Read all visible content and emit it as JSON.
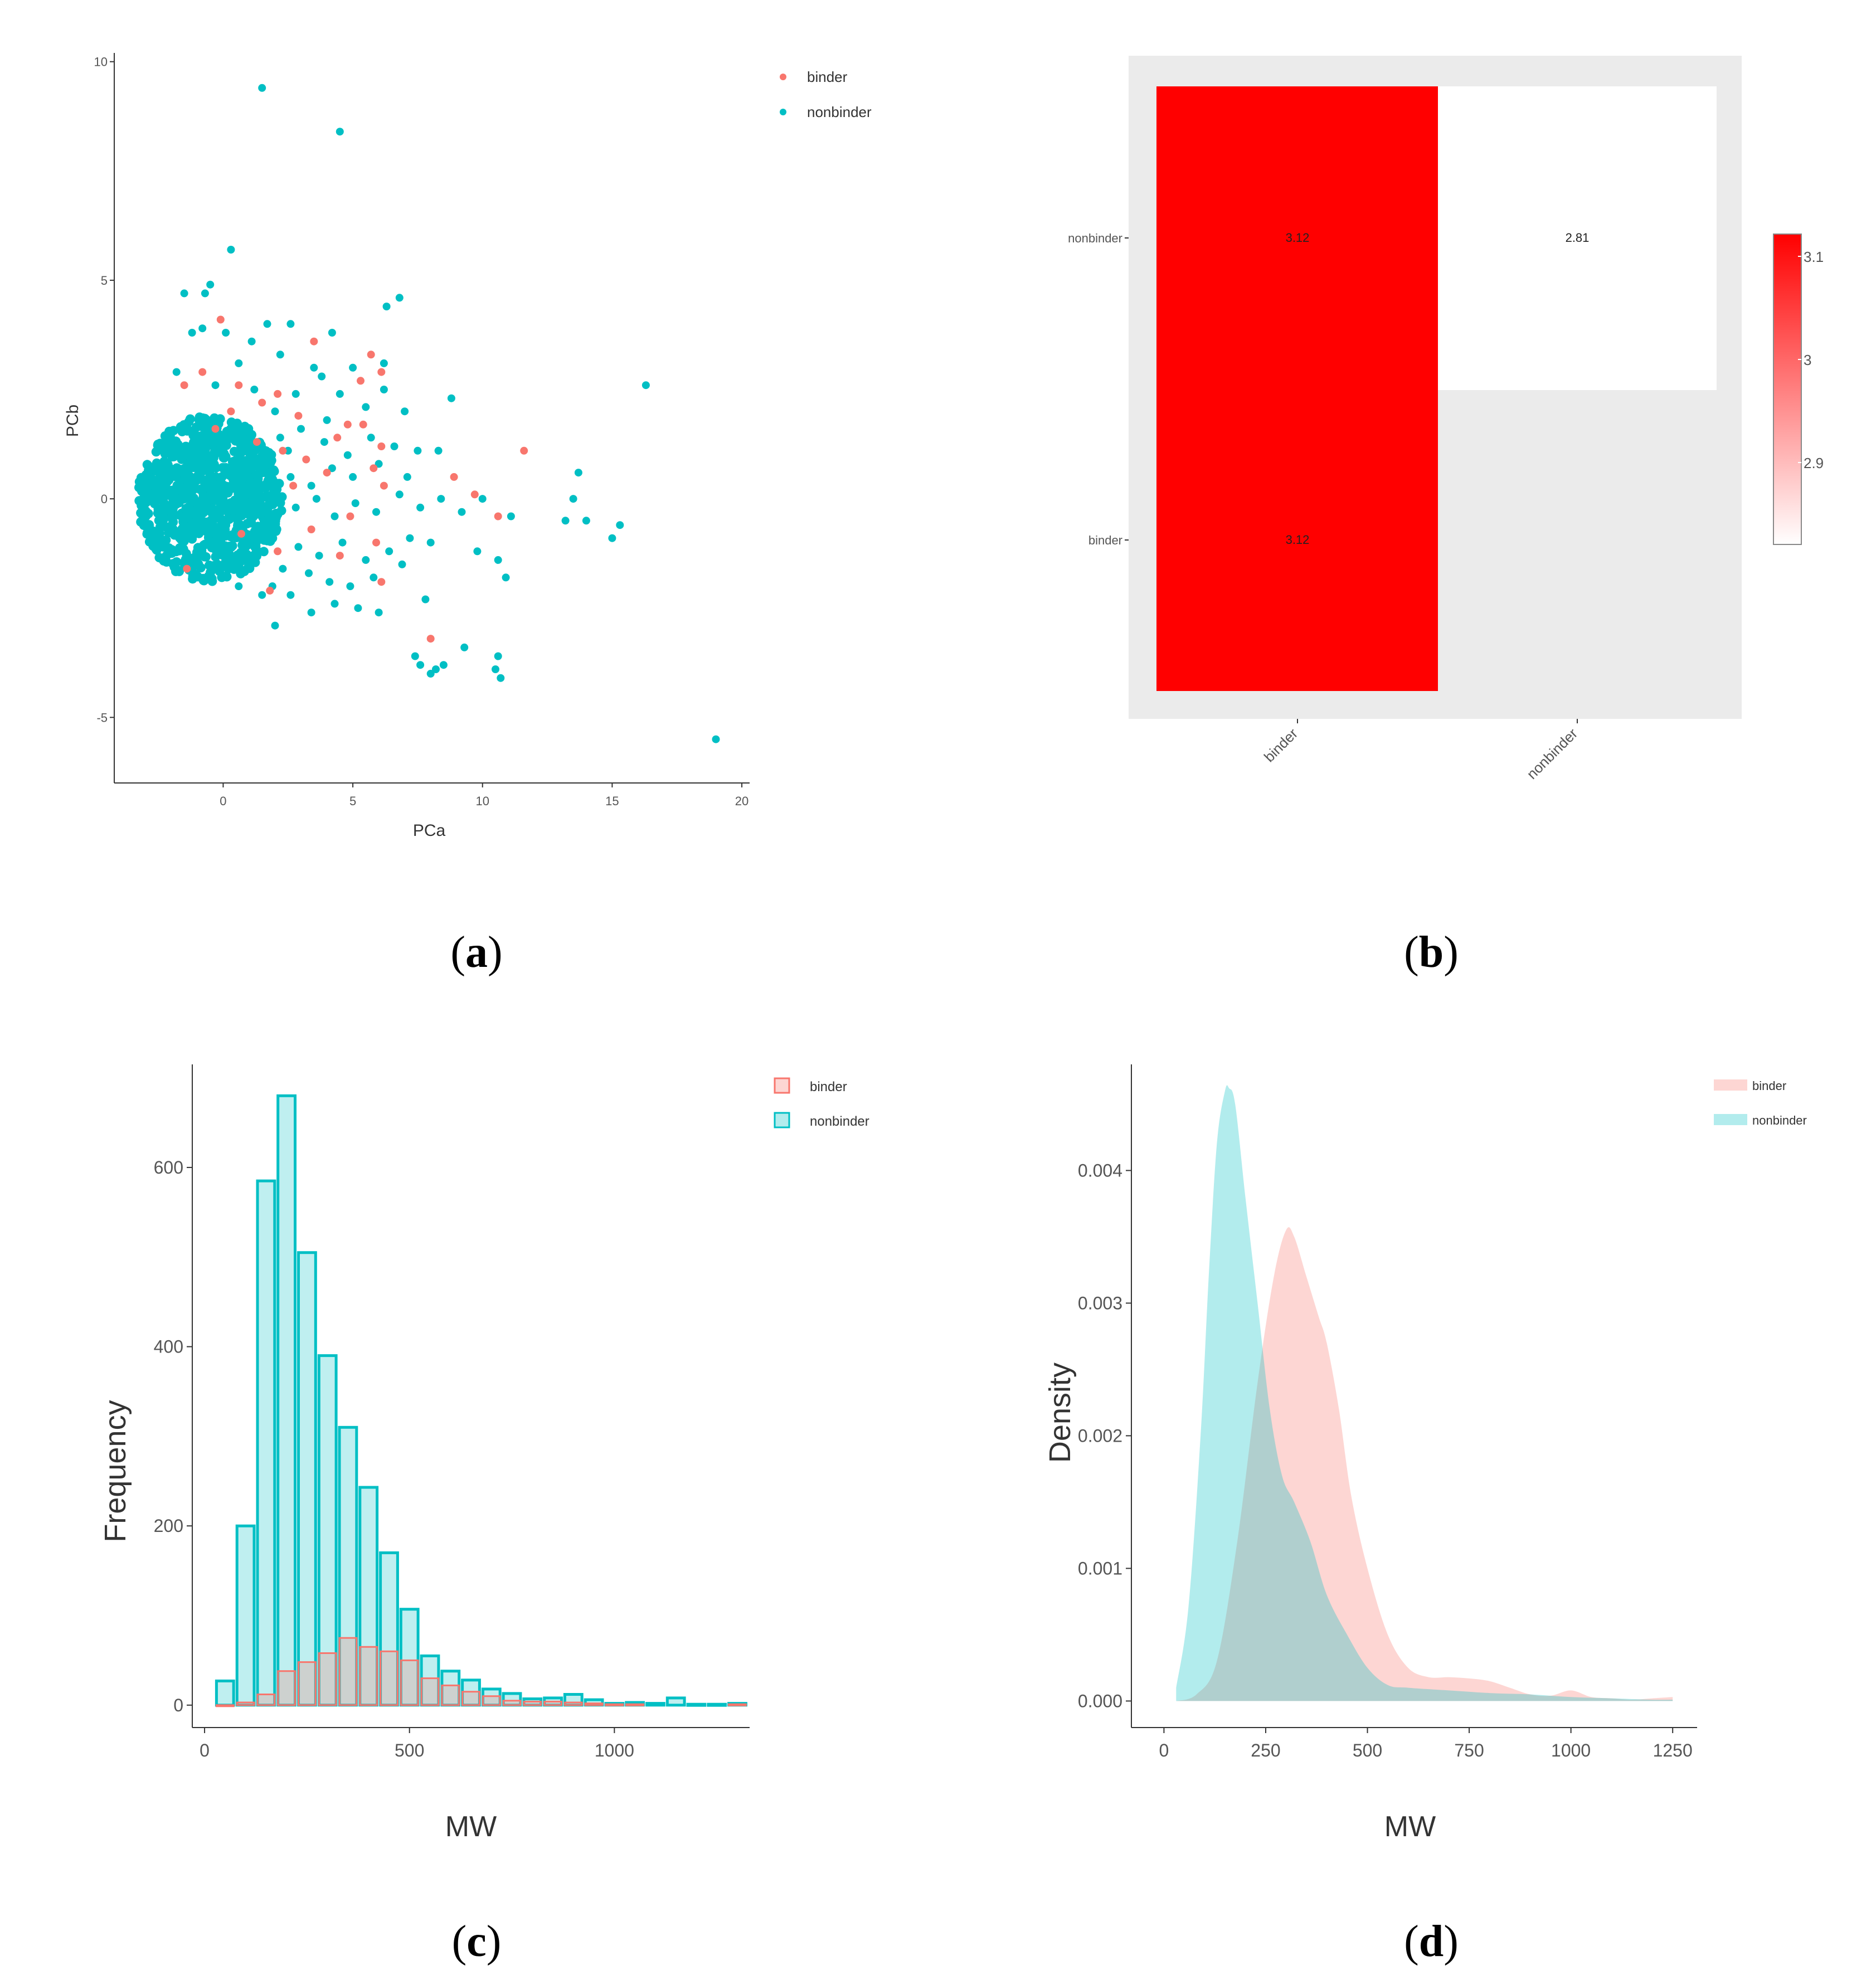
{
  "colors": {
    "binder": "#F8766D",
    "nonbinder": "#00BFC4",
    "heat_high": "#FF0000",
    "heat_low": "#FFFFFF",
    "panel_bg": "#EBEBEB"
  },
  "panel_labels": {
    "a": {
      "open": "(",
      "letter": "a",
      "close": ")"
    },
    "b": {
      "open": "(",
      "letter": "b",
      "close": ")"
    },
    "c": {
      "open": "(",
      "letter": "c",
      "close": ")"
    },
    "d": {
      "open": "(",
      "letter": "d",
      "close": ")"
    }
  },
  "chart_data": [
    {
      "id": "a",
      "type": "scatter",
      "title": "",
      "xlabel": "PCa",
      "ylabel": "PCb",
      "xlim": [
        -4.2,
        20.3
      ],
      "ylim": [
        -6.5,
        10.2
      ],
      "xticks": [
        0,
        5,
        10,
        15,
        20
      ],
      "yticks": [
        -5,
        0,
        5,
        10
      ],
      "grid": false,
      "legend": {
        "placement": "top-right",
        "entries": [
          "binder",
          "nonbinder"
        ]
      },
      "dense_cluster": {
        "center": [
          -0.5,
          0
        ],
        "rx": 2.8,
        "ry": 1.9,
        "series": "nonbinder"
      },
      "series": [
        {
          "name": "nonbinder",
          "points": [
            [
              1.5,
              9.4
            ],
            [
              4.5,
              8.4
            ],
            [
              0.3,
              5.7
            ],
            [
              -1.5,
              4.7
            ],
            [
              -0.7,
              4.7
            ],
            [
              -0.5,
              4.9
            ],
            [
              1.7,
              4.0
            ],
            [
              2.6,
              4.0
            ],
            [
              6.8,
              4.6
            ],
            [
              6.3,
              4.4
            ],
            [
              4.2,
              3.8
            ],
            [
              -1.2,
              3.8
            ],
            [
              -0.8,
              3.9
            ],
            [
              0.1,
              3.8
            ],
            [
              6.2,
              3.1
            ],
            [
              3.5,
              3.0
            ],
            [
              5.0,
              3.0
            ],
            [
              2.2,
              3.3
            ],
            [
              1.1,
              3.6
            ],
            [
              16.3,
              2.6
            ],
            [
              8.8,
              2.3
            ],
            [
              7.0,
              2.0
            ],
            [
              6.2,
              2.5
            ],
            [
              5.5,
              2.1
            ],
            [
              4.5,
              2.4
            ],
            [
              3.8,
              2.8
            ],
            [
              2.8,
              2.4
            ],
            [
              2.0,
              2.0
            ],
            [
              4.0,
              1.8
            ],
            [
              7.5,
              1.1
            ],
            [
              6.6,
              1.2
            ],
            [
              5.7,
              1.4
            ],
            [
              4.8,
              1.0
            ],
            [
              3.9,
              1.3
            ],
            [
              3.0,
              1.6
            ],
            [
              2.5,
              1.1
            ],
            [
              8.3,
              1.1
            ],
            [
              7.1,
              0.5
            ],
            [
              6.0,
              0.8
            ],
            [
              5.0,
              0.5
            ],
            [
              4.2,
              0.7
            ],
            [
              3.4,
              0.3
            ],
            [
              2.6,
              0.5
            ],
            [
              13.7,
              0.6
            ],
            [
              13.5,
              0.0
            ],
            [
              10.0,
              0.0
            ],
            [
              9.2,
              -0.3
            ],
            [
              8.4,
              0.0
            ],
            [
              7.6,
              -0.2
            ],
            [
              6.8,
              0.1
            ],
            [
              5.9,
              -0.3
            ],
            [
              5.1,
              -0.1
            ],
            [
              4.3,
              -0.4
            ],
            [
              3.6,
              0.0
            ],
            [
              2.8,
              -0.2
            ],
            [
              11.1,
              -0.4
            ],
            [
              13.2,
              -0.5
            ],
            [
              14.0,
              -0.5
            ],
            [
              15.3,
              -0.6
            ],
            [
              15.0,
              -0.9
            ],
            [
              9.8,
              -1.2
            ],
            [
              8.0,
              -1.0
            ],
            [
              7.2,
              -0.9
            ],
            [
              6.4,
              -1.2
            ],
            [
              5.5,
              -1.4
            ],
            [
              4.6,
              -1.0
            ],
            [
              3.7,
              -1.3
            ],
            [
              2.9,
              -1.1
            ],
            [
              2.3,
              -1.6
            ],
            [
              10.6,
              -1.4
            ],
            [
              10.9,
              -1.8
            ],
            [
              6.9,
              -1.5
            ],
            [
              5.8,
              -1.8
            ],
            [
              4.9,
              -2.0
            ],
            [
              4.1,
              -1.9
            ],
            [
              3.3,
              -1.7
            ],
            [
              2.6,
              -2.2
            ],
            [
              1.9,
              -2.0
            ],
            [
              7.8,
              -2.3
            ],
            [
              6.0,
              -2.6
            ],
            [
              5.2,
              -2.5
            ],
            [
              4.3,
              -2.4
            ],
            [
              3.4,
              -2.6
            ],
            [
              2.0,
              -2.9
            ],
            [
              7.4,
              -3.6
            ],
            [
              7.6,
              -3.8
            ],
            [
              8.2,
              -3.9
            ],
            [
              8.5,
              -3.8
            ],
            [
              9.3,
              -3.4
            ],
            [
              10.6,
              -3.6
            ],
            [
              10.5,
              -3.9
            ],
            [
              10.7,
              -4.1
            ],
            [
              8.0,
              -4.0
            ],
            [
              19.0,
              -5.5
            ],
            [
              0.6,
              -2.0
            ],
            [
              -1.0,
              -1.4
            ],
            [
              1.2,
              2.5
            ],
            [
              -0.3,
              2.6
            ],
            [
              0.6,
              3.1
            ],
            [
              -1.8,
              2.9
            ],
            [
              1.5,
              -2.2
            ],
            [
              -0.4,
              -1.9
            ],
            [
              0.9,
              -1.6
            ],
            [
              2.2,
              1.4
            ]
          ]
        },
        {
          "name": "binder",
          "points": [
            [
              -0.1,
              4.1
            ],
            [
              3.5,
              3.6
            ],
            [
              5.7,
              3.3
            ],
            [
              6.1,
              2.9
            ],
            [
              -0.8,
              2.9
            ],
            [
              -1.5,
              2.6
            ],
            [
              0.6,
              2.6
            ],
            [
              2.1,
              2.4
            ],
            [
              5.3,
              2.7
            ],
            [
              1.5,
              2.2
            ],
            [
              0.3,
              2.0
            ],
            [
              2.9,
              1.9
            ],
            [
              4.8,
              1.7
            ],
            [
              5.4,
              1.7
            ],
            [
              -0.3,
              1.6
            ],
            [
              1.3,
              1.3
            ],
            [
              4.4,
              1.4
            ],
            [
              6.1,
              1.2
            ],
            [
              2.3,
              1.1
            ],
            [
              3.2,
              0.9
            ],
            [
              11.6,
              1.1
            ],
            [
              5.8,
              0.7
            ],
            [
              4.0,
              0.6
            ],
            [
              8.9,
              0.5
            ],
            [
              2.7,
              0.3
            ],
            [
              6.2,
              0.3
            ],
            [
              9.7,
              0.1
            ],
            [
              10.6,
              -0.4
            ],
            [
              4.9,
              -0.4
            ],
            [
              3.4,
              -0.7
            ],
            [
              5.9,
              -1.0
            ],
            [
              2.1,
              -1.2
            ],
            [
              4.5,
              -1.3
            ],
            [
              -1.4,
              -1.6
            ],
            [
              6.1,
              -1.9
            ],
            [
              8.0,
              -3.2
            ],
            [
              1.8,
              -2.1
            ],
            [
              0.7,
              -0.8
            ]
          ]
        }
      ]
    },
    {
      "id": "b",
      "type": "heatmap",
      "title": "",
      "xlabel": "",
      "ylabel": "",
      "x_categories": [
        "binder",
        "nonbinder"
      ],
      "y_categories": [
        "binder",
        "nonbinder"
      ],
      "cells": [
        {
          "x": "binder",
          "y": "nonbinder",
          "value": 3.12,
          "label": "3.12"
        },
        {
          "x": "binder",
          "y": "binder",
          "value": 3.12,
          "label": "3.12"
        },
        {
          "x": "nonbinder",
          "y": "nonbinder",
          "value": 2.81,
          "label": "2.81"
        }
      ],
      "colorbar": {
        "min": 2.81,
        "max": 3.12,
        "ticks": [
          2.9,
          3.0,
          3.1
        ],
        "placement": "right"
      },
      "grid": false
    },
    {
      "id": "c",
      "type": "bar",
      "title": "",
      "xlabel": "MW",
      "ylabel": "Frequency",
      "xlim": [
        -30,
        1330
      ],
      "ylim": [
        -25,
        715
      ],
      "xticks": [
        0,
        500,
        1000
      ],
      "yticks": [
        0,
        200,
        400,
        600
      ],
      "bin_width": 50,
      "grid": false,
      "legend": {
        "placement": "top-right",
        "entries": [
          "binder",
          "nonbinder"
        ]
      },
      "series": [
        {
          "name": "nonbinder",
          "bins": [
            [
              50,
              27
            ],
            [
              100,
              200
            ],
            [
              150,
              585
            ],
            [
              200,
              680
            ],
            [
              250,
              505
            ],
            [
              300,
              390
            ],
            [
              350,
              310
            ],
            [
              400,
              243
            ],
            [
              450,
              170
            ],
            [
              500,
              107
            ],
            [
              550,
              55
            ],
            [
              600,
              38
            ],
            [
              650,
              28
            ],
            [
              700,
              18
            ],
            [
              750,
              13
            ],
            [
              800,
              7
            ],
            [
              850,
              8
            ],
            [
              900,
              12
            ],
            [
              950,
              6
            ],
            [
              1000,
              2
            ],
            [
              1050,
              3
            ],
            [
              1100,
              2
            ],
            [
              1150,
              8
            ],
            [
              1200,
              1
            ],
            [
              1250,
              1
            ],
            [
              1300,
              2
            ]
          ]
        },
        {
          "name": "binder",
          "bins": [
            [
              50,
              0
            ],
            [
              100,
              3
            ],
            [
              150,
              12
            ],
            [
              200,
              38
            ],
            [
              250,
              48
            ],
            [
              300,
              58
            ],
            [
              350,
              75
            ],
            [
              400,
              65
            ],
            [
              450,
              60
            ],
            [
              500,
              50
            ],
            [
              550,
              30
            ],
            [
              600,
              22
            ],
            [
              650,
              15
            ],
            [
              700,
              10
            ],
            [
              750,
              5
            ],
            [
              800,
              4
            ],
            [
              850,
              4
            ],
            [
              900,
              3
            ],
            [
              950,
              2
            ],
            [
              1000,
              1
            ],
            [
              1050,
              1
            ],
            [
              1300,
              1
            ]
          ]
        }
      ]
    },
    {
      "id": "d",
      "type": "area",
      "title": "",
      "xlabel": "MW",
      "ylabel": "Density",
      "xlim": [
        -80,
        1310
      ],
      "ylim": [
        -0.0002,
        0.0048
      ],
      "xticks": [
        0,
        250,
        500,
        750,
        1000,
        1250
      ],
      "yticks": [
        0.0,
        0.001,
        0.002,
        0.003,
        0.004
      ],
      "ytick_labels": [
        "0.000",
        "0.001",
        "0.002",
        "0.003",
        "0.004"
      ],
      "grid": false,
      "legend": {
        "placement": "top-right",
        "entries": [
          "binder",
          "nonbinder"
        ]
      },
      "series": [
        {
          "name": "binder",
          "x": [
            30,
            80,
            130,
            180,
            230,
            270,
            300,
            320,
            350,
            380,
            400,
            430,
            460,
            500,
            550,
            600,
            650,
            700,
            750,
            800,
            850,
            900,
            950,
            1000,
            1050,
            1100,
            1150,
            1200,
            1250
          ],
          "y": [
            0.0,
            5e-05,
            0.0003,
            0.0012,
            0.0024,
            0.0032,
            0.00355,
            0.0035,
            0.0032,
            0.0029,
            0.0027,
            0.0022,
            0.00155,
            0.001,
            0.0005,
            0.00025,
            0.00018,
            0.00018,
            0.00017,
            0.00015,
            0.0001,
            5e-05,
            4e-05,
            8e-05,
            3e-05,
            2e-05,
            1e-05,
            2e-05,
            3e-05
          ]
        },
        {
          "name": "nonbinder",
          "x": [
            30,
            60,
            90,
            110,
            130,
            150,
            160,
            175,
            200,
            230,
            260,
            290,
            320,
            360,
            400,
            450,
            500,
            550,
            600,
            700,
            800,
            900,
            1000,
            1100,
            1200,
            1250
          ],
          "y": [
            0.0001,
            0.0007,
            0.002,
            0.0032,
            0.0042,
            0.0046,
            0.00462,
            0.0045,
            0.0038,
            0.003,
            0.0022,
            0.0017,
            0.0015,
            0.0012,
            0.0008,
            0.0005,
            0.00025,
            0.00012,
            0.0001,
            8e-05,
            6e-05,
            5e-05,
            3e-05,
            2e-05,
            1e-05,
            1e-05
          ]
        }
      ]
    }
  ]
}
